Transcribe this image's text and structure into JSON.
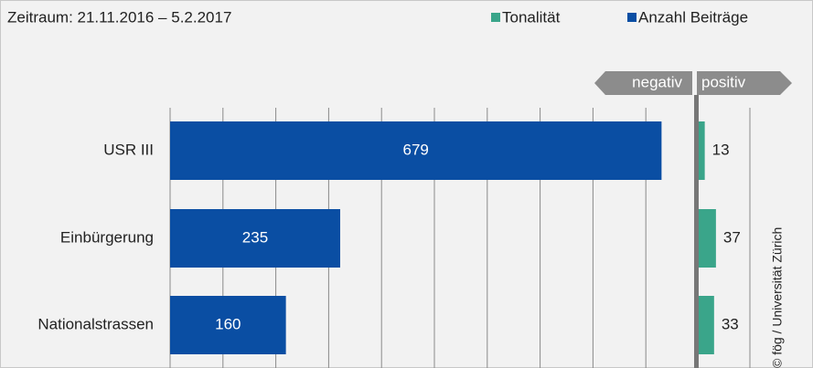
{
  "chart_data": {
    "type": "bar",
    "title": "Zeitraum:  21.11.2016 – 5.2.2017",
    "categories": [
      "USR III",
      "Einbürgerung",
      "Nationalstrassen"
    ],
    "series": [
      {
        "name": "Tonalität",
        "color": "#3aa58a",
        "values": [
          13,
          37,
          33
        ],
        "xlim": [
          0,
          100
        ]
      },
      {
        "name": "Anzahl Beiträge",
        "color": "#0a4ea3",
        "values": [
          679,
          235,
          160
        ],
        "xlim": [
          0,
          700
        ]
      }
    ],
    "tonality_labels": [
      "negativ",
      "positiv"
    ],
    "source": "© fög / Universität Zürich"
  }
}
